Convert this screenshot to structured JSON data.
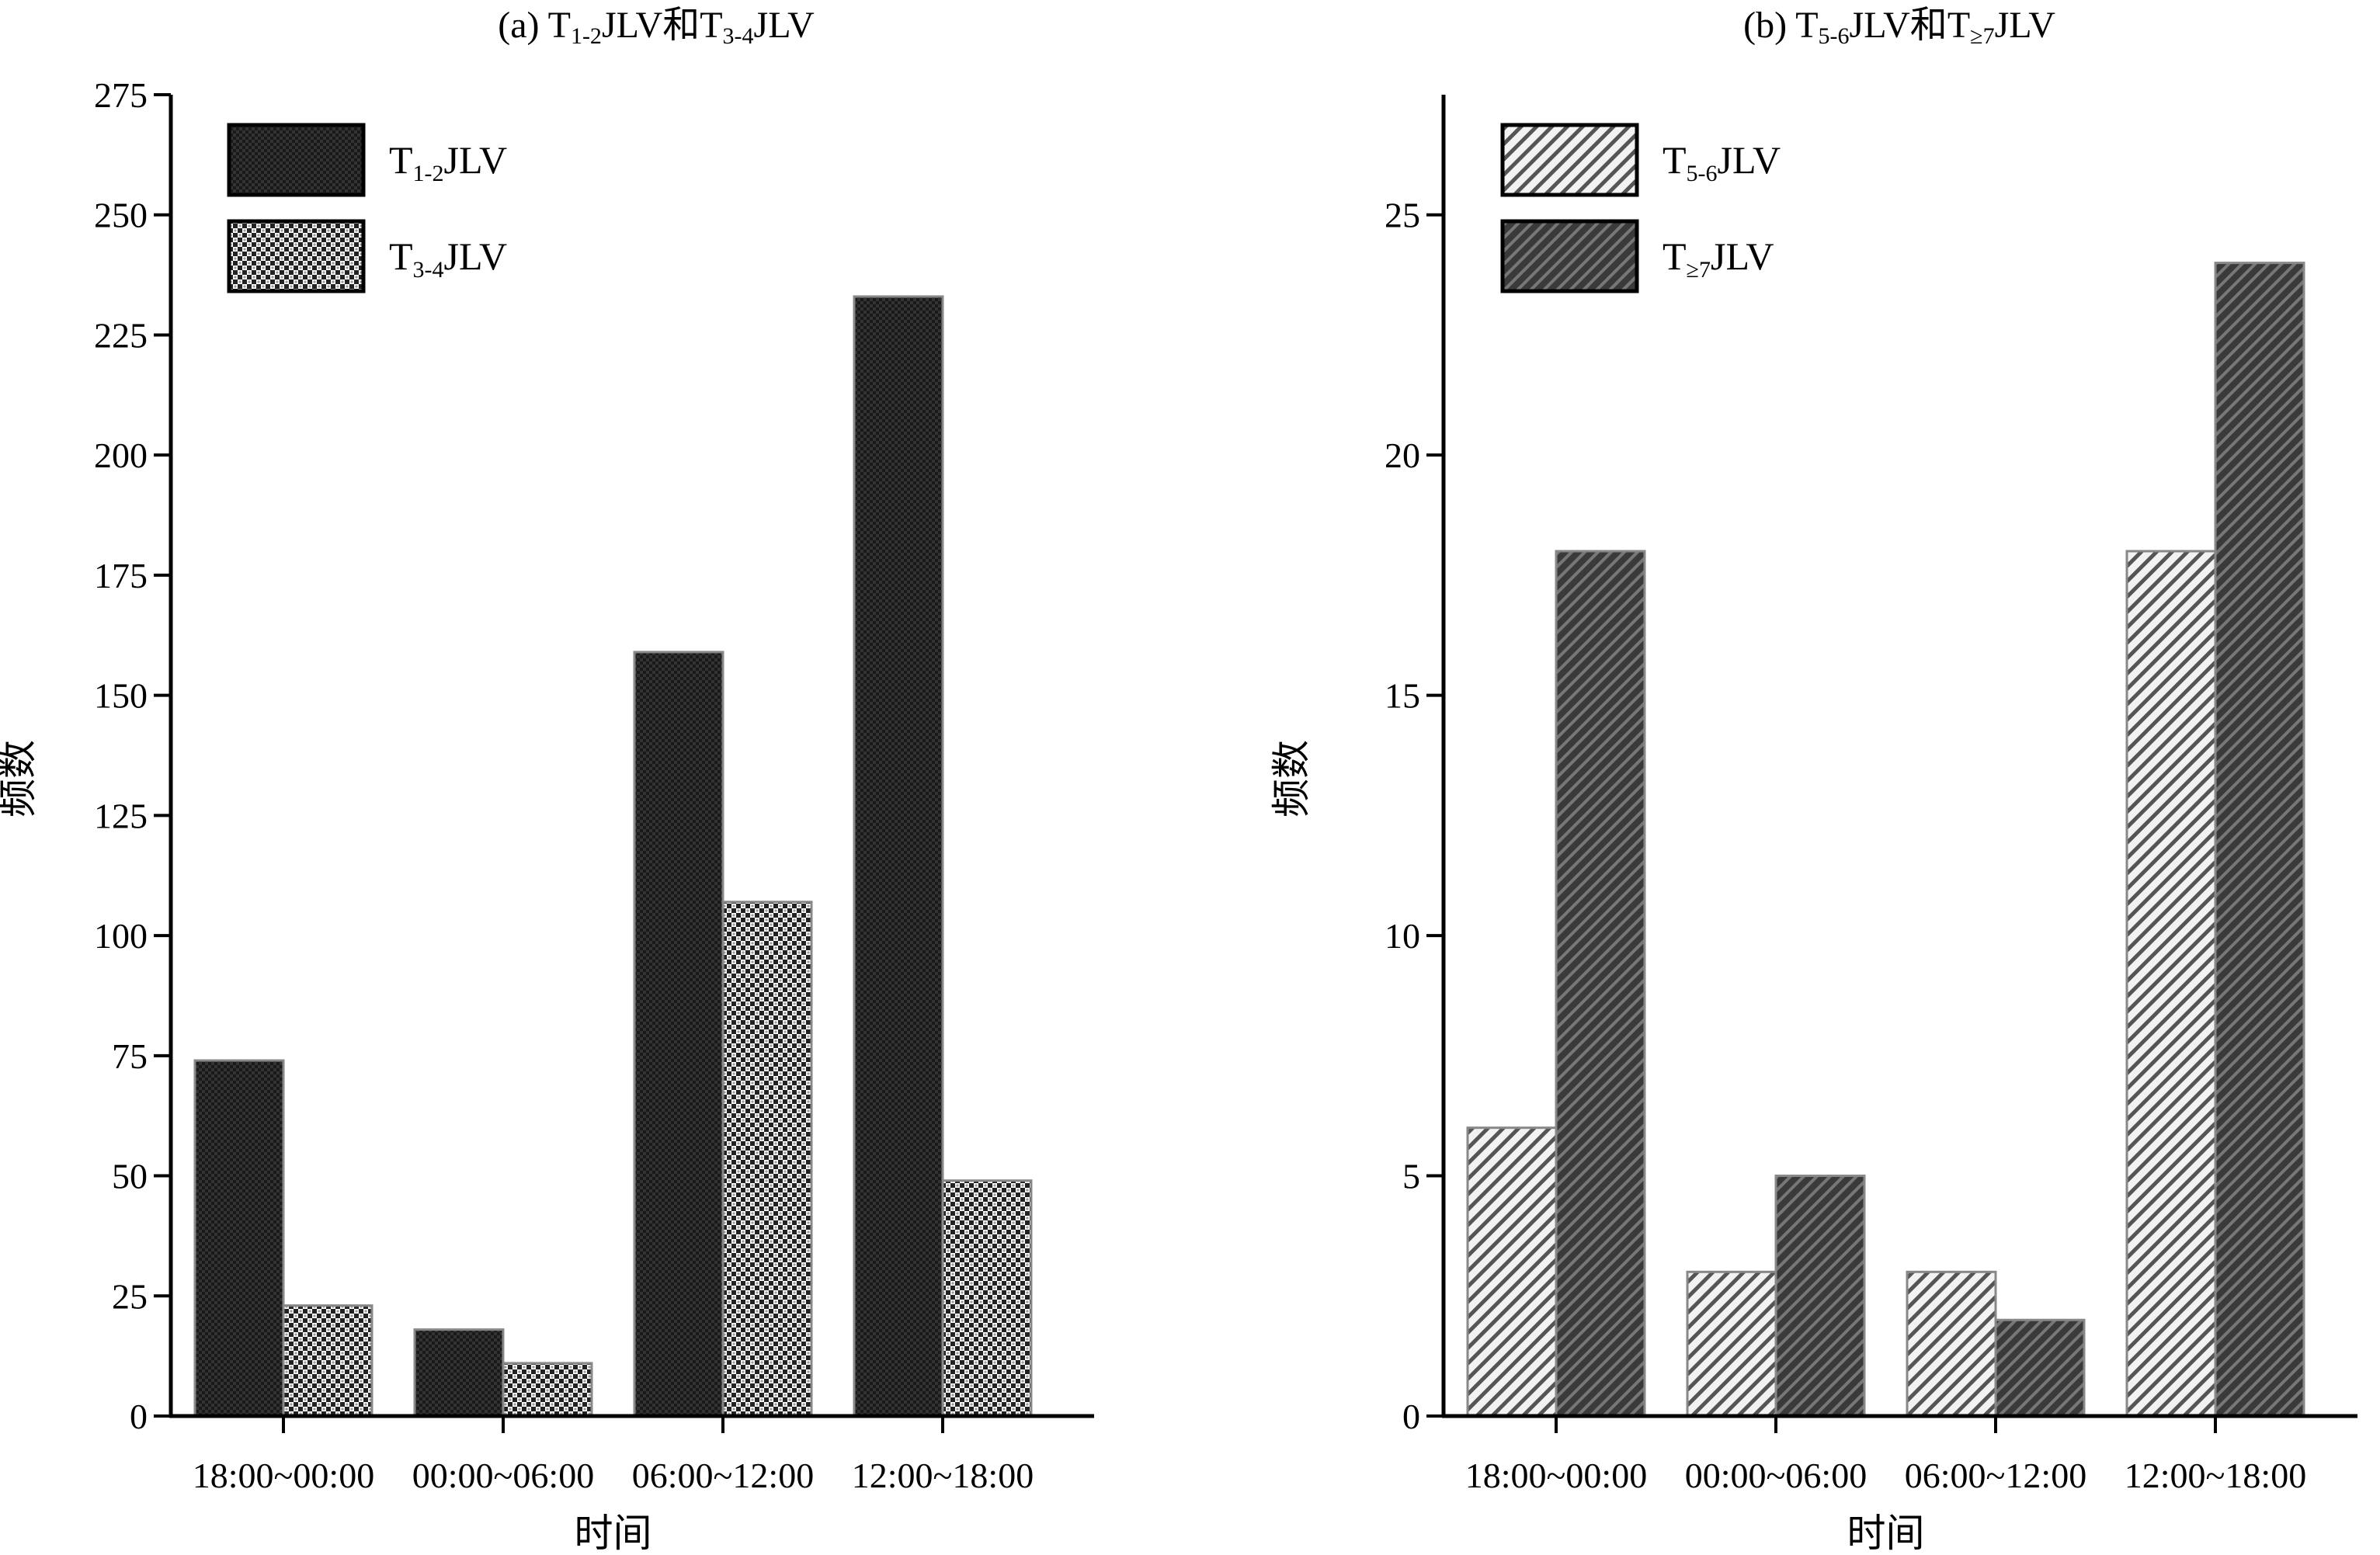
{
  "chart_data": [
    {
      "type": "bar",
      "title": "(a) T1-2JLV和T3-4JLV",
      "xlabel": "时间",
      "ylabel": "频数",
      "categories": [
        "18:00~00:00",
        "00:00~06:00",
        "06:00~12:00",
        "12:00~18:00"
      ],
      "ylim": [
        0,
        275
      ],
      "yticks": [
        0,
        25,
        50,
        75,
        100,
        125,
        150,
        175,
        200,
        225,
        250,
        275
      ],
      "legend_position": "top-left",
      "series": [
        {
          "name": "T1-2JLV",
          "name_main": "T",
          "name_sub": "1-2",
          "name_rest": "JLV",
          "pattern": "dark-checker",
          "values": [
            74,
            18,
            159,
            233
          ]
        },
        {
          "name": "T3-4JLV",
          "name_main": "T",
          "name_sub": "3-4",
          "name_rest": "JLV",
          "pattern": "light-checker",
          "values": [
            23,
            11,
            107,
            49
          ]
        }
      ]
    },
    {
      "type": "bar",
      "title": "(b) T5-6JLV和T≥7JLV",
      "xlabel": "时间",
      "ylabel": "频数",
      "categories": [
        "18:00~00:00",
        "00:00~06:00",
        "06:00~12:00",
        "12:00~18:00"
      ],
      "ylim": [
        0,
        27.5
      ],
      "yticks": [
        0,
        5,
        10,
        15,
        20,
        25
      ],
      "legend_position": "top-left",
      "series": [
        {
          "name": "T5-6JLV",
          "name_main": "T",
          "name_sub": "5-6",
          "name_rest": "JLV",
          "pattern": "light-diagonal",
          "values": [
            6,
            3,
            3,
            18
          ]
        },
        {
          "name": "T≥7JLV",
          "name_main": "T",
          "name_sub": "≥7",
          "name_rest": "JLV",
          "pattern": "dark-diagonal",
          "values": [
            18,
            5,
            2,
            24
          ]
        }
      ]
    }
  ],
  "titles": {
    "a": {
      "prefix": "(a) ",
      "t1": "T",
      "s1": "1-2",
      "r1": "JLV和",
      "t2": "T",
      "s2": "3-4",
      "r2": "JLV"
    },
    "b": {
      "prefix": "(b) ",
      "t1": "T",
      "s1": "5-6",
      "r1": "JLV和",
      "t2": "T",
      "s2": "≥7",
      "r2": "JLV"
    }
  }
}
